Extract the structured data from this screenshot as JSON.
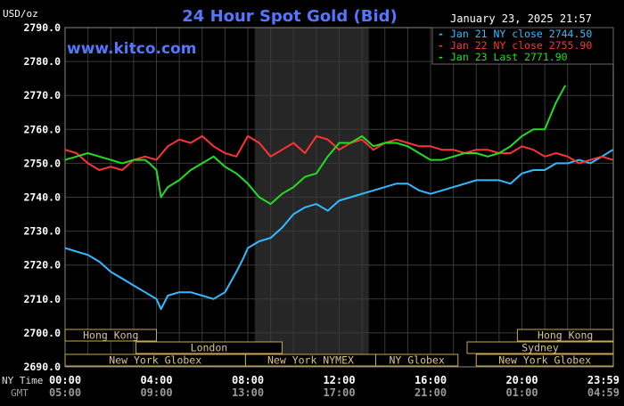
{
  "chart_data": {
    "type": "line",
    "title": "24 Hour Spot Gold (Bid)",
    "ylabel": "USD/oz",
    "watermark": "www.kitco.com",
    "timestamp": "January 23, 2025 21:57",
    "ylim": [
      2690,
      2790
    ],
    "y_ticks": [
      "2790.0",
      "2780.0",
      "2770.0",
      "2760.0",
      "2750.0",
      "2740.0",
      "2730.0",
      "2720.0",
      "2710.0",
      "2700.0",
      "2690.0"
    ],
    "x_ticks_nytime": [
      "00:00",
      "04:00",
      "08:00",
      "12:00",
      "16:00",
      "20:00",
      "23:59"
    ],
    "x_ticks_gmt": [
      "05:00",
      "09:00",
      "13:00",
      "17:00",
      "21:00",
      "01:00",
      "04:59"
    ],
    "row_label_nytime": "NY Time",
    "row_label_gmt": "GMT",
    "legend": [
      {
        "text": "Jan 21 NY close 2744.50",
        "color": "#33bbff"
      },
      {
        "text": "Jan 22 NY close 2755.90",
        "color": "#ff3333"
      },
      {
        "text": "Jan 23 Last 2771.90",
        "color": "#22dd22"
      }
    ],
    "series": [
      {
        "color": "#33bbff",
        "x": [
          0,
          0.5,
          1,
          1.5,
          2,
          2.5,
          3,
          3.5,
          4,
          4.2,
          4.5,
          5,
          5.5,
          6,
          6.5,
          7,
          7.5,
          7.8,
          8,
          8.5,
          9,
          9.5,
          10,
          10.5,
          11,
          11.5,
          12,
          12.5,
          13,
          13.5,
          14,
          14.5,
          15,
          15.5,
          16,
          16.5,
          17,
          17.5,
          18,
          18.5,
          19,
          19.5,
          20,
          20.5,
          21,
          21.5,
          22,
          22.5,
          23,
          23.5,
          23.98
        ],
        "values": [
          2725,
          2724,
          2723,
          2721,
          2718,
          2716,
          2714,
          2712,
          2710,
          2707,
          2711,
          2712,
          2712,
          2711,
          2710,
          2712,
          2718,
          2722,
          2725,
          2727,
          2728,
          2731,
          2735,
          2737,
          2738,
          2736,
          2739,
          2740,
          2741,
          2742,
          2743,
          2744,
          2744,
          2742,
          2741,
          2742,
          2743,
          2744,
          2745,
          2745,
          2745,
          2744,
          2747,
          2748,
          2748,
          2750,
          2750,
          2751,
          2750,
          2752,
          2754
        ]
      },
      {
        "color": "#ff3333",
        "x": [
          0,
          0.5,
          1,
          1.5,
          2,
          2.5,
          3,
          3.5,
          4,
          4.5,
          5,
          5.5,
          6,
          6.5,
          7,
          7.5,
          8,
          8.5,
          9,
          9.5,
          10,
          10.5,
          11,
          11.5,
          12,
          12.5,
          13,
          13.5,
          14,
          14.5,
          15,
          15.5,
          16,
          16.5,
          17,
          17.5,
          18,
          18.5,
          19,
          19.5,
          20,
          20.5,
          21,
          21.5,
          22,
          22.5,
          23,
          23.5,
          23.98
        ],
        "values": [
          2754,
          2753,
          2750,
          2748,
          2749,
          2748,
          2751,
          2752,
          2751,
          2755,
          2757,
          2756,
          2758,
          2755,
          2753,
          2752,
          2758,
          2756,
          2752,
          2754,
          2756,
          2753,
          2758,
          2757,
          2754,
          2756,
          2757,
          2754,
          2756,
          2757,
          2756,
          2755,
          2755,
          2754,
          2754,
          2753,
          2754,
          2754,
          2753,
          2753,
          2755,
          2754,
          2752,
          2753,
          2752,
          2750,
          2751,
          2752,
          2751
        ]
      },
      {
        "color": "#22dd22",
        "x": [
          0,
          0.5,
          1,
          1.5,
          2,
          2.5,
          3,
          3.5,
          3.7,
          4,
          4.2,
          4.5,
          5,
          5.5,
          6,
          6.5,
          7,
          7.5,
          8,
          8.5,
          9,
          9.5,
          10,
          10.5,
          11,
          11.5,
          12,
          12.5,
          13,
          13.5,
          14,
          14.5,
          15,
          15.5,
          16,
          16.5,
          17,
          17.5,
          18,
          18.5,
          19,
          19.5,
          20,
          20.5,
          21,
          21.5,
          21.9
        ],
        "values": [
          2751,
          2752,
          2753,
          2752,
          2751,
          2750,
          2751,
          2751,
          2750,
          2748,
          2740,
          2743,
          2745,
          2748,
          2750,
          2752,
          2749,
          2747,
          2744,
          2740,
          2738,
          2741,
          2743,
          2746,
          2747,
          2752,
          2756,
          2756,
          2758,
          2755,
          2756,
          2756,
          2755,
          2753,
          2751,
          2751,
          2752,
          2753,
          2753,
          2752,
          2753,
          2755,
          2758,
          2760,
          2760,
          2768,
          2773
        ]
      }
    ],
    "sessions": [
      {
        "name": "Hong Kong",
        "row": 0,
        "start": 0,
        "end": 4
      },
      {
        "name": "London",
        "row": 1,
        "start": 3.1,
        "end": 9.5
      },
      {
        "name": "New York Globex",
        "row": 2,
        "start": 0,
        "end": 7.9
      },
      {
        "name": "New York NYMEX",
        "row": 2,
        "start": 7.9,
        "end": 13.6
      },
      {
        "name": "NY Globex",
        "row": 2,
        "start": 13.6,
        "end": 17.2
      },
      {
        "name": "Sydney",
        "row": 1,
        "start": 17.6,
        "end": 24
      },
      {
        "name": "Hong Kong",
        "row": 0,
        "start": 19.8,
        "end": 24
      },
      {
        "name": "New York Globex",
        "row": 2,
        "start": 18,
        "end": 24
      }
    ],
    "shaded_region": [
      8.3,
      13.3
    ],
    "grid": true
  }
}
